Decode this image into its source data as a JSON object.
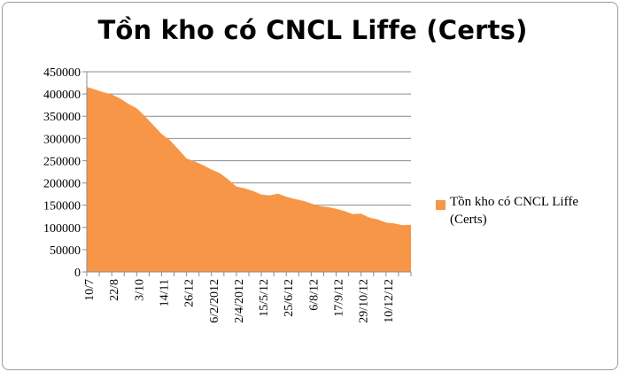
{
  "chart_data": {
    "type": "area",
    "title": "Tồn kho có CNCL Liffe (Certs)",
    "xlabel": "",
    "ylabel": "",
    "ylim": [
      0,
      450000
    ],
    "y_ticks": [
      "0",
      "50000",
      "100000",
      "150000",
      "200000",
      "250000",
      "300000",
      "350000",
      "400000",
      "450000"
    ],
    "x_tick_labels": [
      "10/7",
      "22/8",
      "3/10",
      "14/11",
      "26/12",
      "6/2/2012",
      "2/4/2012",
      "15/5/12",
      "25/6/12",
      "6/8/12",
      "17/9/12",
      "29/10/12",
      "10/12/12"
    ],
    "legend_position": "right",
    "grid": true,
    "color": "#F79646",
    "series": [
      {
        "name": "Tồn kho có CNCL Liffe (Certs)",
        "values": [
          416000,
          410000,
          404000,
          399000,
          390000,
          378000,
          368000,
          350000,
          330000,
          310000,
          296000,
          276000,
          255000,
          248000,
          240000,
          230000,
          222000,
          208000,
          192000,
          188000,
          182000,
          174000,
          172000,
          176000,
          169000,
          164000,
          160000,
          154000,
          148000,
          146000,
          142000,
          137000,
          130000,
          131000,
          122000,
          118000,
          111000,
          109000,
          105000,
          106000
        ]
      }
    ]
  }
}
